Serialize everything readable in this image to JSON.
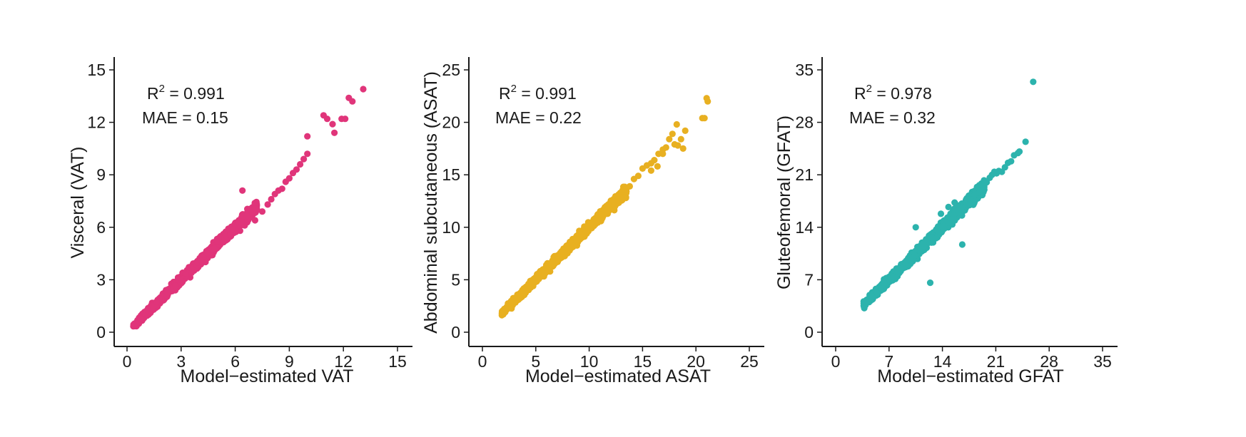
{
  "chart_data": [
    {
      "type": "scatter",
      "title": "",
      "xlabel": "Model−estimated VAT",
      "ylabel": "Visceral (VAT)",
      "xlim": [
        0,
        15
      ],
      "ylim": [
        0,
        15
      ],
      "xticks": [
        0,
        3,
        6,
        9,
        12,
        15
      ],
      "yticks": [
        0,
        3,
        6,
        9,
        12,
        15
      ],
      "color": "#e0357a",
      "annotation": {
        "r2_label": "R",
        "r2_exponent": "2",
        "r2_value": " = 0.991",
        "mae": "MAE = 0.15"
      },
      "fit": {
        "slope": 1.0,
        "intercept": 0.0
      },
      "bulk_range": [
        0.35,
        7.2
      ],
      "bulk_noise": 0.13,
      "n_points": 1400,
      "outliers": [
        [
          7.5,
          6.9
        ],
        [
          7.8,
          7.3
        ],
        [
          8.0,
          7.6
        ],
        [
          8.2,
          7.9
        ],
        [
          8.4,
          8.1
        ],
        [
          8.6,
          8.2
        ],
        [
          8.8,
          8.6
        ],
        [
          9.0,
          8.8
        ],
        [
          9.2,
          9.1
        ],
        [
          9.4,
          9.3
        ],
        [
          9.6,
          9.6
        ],
        [
          9.8,
          9.9
        ],
        [
          10.0,
          10.2
        ],
        [
          6.4,
          8.1
        ],
        [
          7.1,
          6.4
        ],
        [
          10.0,
          11.2
        ],
        [
          10.9,
          12.4
        ],
        [
          11.1,
          12.2
        ],
        [
          11.4,
          11.9
        ],
        [
          11.5,
          11.4
        ],
        [
          11.9,
          12.2
        ],
        [
          12.1,
          12.2
        ],
        [
          12.3,
          13.4
        ],
        [
          12.5,
          13.2
        ],
        [
          13.1,
          13.9
        ]
      ]
    },
    {
      "type": "scatter",
      "title": "",
      "xlabel": "Model−estimated ASAT",
      "ylabel": "Abdominal subcutaneous (ASAT)",
      "xlim": [
        0,
        25
      ],
      "ylim": [
        0,
        25
      ],
      "xticks": [
        0,
        5,
        10,
        15,
        20,
        25
      ],
      "yticks": [
        0,
        5,
        10,
        15,
        20,
        25
      ],
      "color": "#e8b021",
      "annotation": {
        "r2_label": "R",
        "r2_exponent": "2",
        "r2_value": " = 0.991",
        "mae": "MAE = 0.22"
      },
      "fit": {
        "slope": 1.0,
        "intercept": 0.0
      },
      "bulk_range": [
        1.8,
        13.5
      ],
      "bulk_noise": 0.22,
      "n_points": 1300,
      "outliers": [
        [
          13.8,
          13.9
        ],
        [
          14.2,
          14.6
        ],
        [
          14.6,
          14.9
        ],
        [
          15.0,
          15.6
        ],
        [
          15.4,
          15.9
        ],
        [
          15.8,
          16.1
        ],
        [
          16.1,
          16.4
        ],
        [
          16.5,
          17.0
        ],
        [
          16.9,
          17.4
        ],
        [
          17.2,
          17.6
        ],
        [
          17.5,
          18.4
        ],
        [
          17.8,
          18.9
        ],
        [
          18.0,
          17.9
        ],
        [
          18.3,
          17.8
        ],
        [
          18.6,
          18.4
        ],
        [
          18.8,
          17.5
        ],
        [
          19.0,
          19.2
        ],
        [
          18.2,
          19.8
        ],
        [
          16.9,
          17.0
        ],
        [
          15.8,
          15.4
        ],
        [
          16.4,
          15.8
        ],
        [
          20.6,
          20.4
        ],
        [
          20.8,
          20.4
        ],
        [
          21.0,
          22.3
        ],
        [
          21.1,
          22.0
        ]
      ]
    },
    {
      "type": "scatter",
      "title": "",
      "xlabel": "Model−estimated GFAT",
      "ylabel": "Gluteofemoral (GFAT)",
      "xlim": [
        0,
        35
      ],
      "ylim": [
        0,
        35
      ],
      "xticks": [
        0,
        7,
        14,
        21,
        28,
        35
      ],
      "yticks": [
        0,
        7,
        14,
        21,
        28,
        35
      ],
      "color": "#2cb3ad",
      "annotation": {
        "r2_label": "R",
        "r2_exponent": "2",
        "r2_value": " = 0.978",
        "mae": "MAE = 0.32"
      },
      "fit": {
        "slope": 1.0,
        "intercept": 0.0
      },
      "bulk_range": [
        3.6,
        19.5
      ],
      "bulk_noise": 0.35,
      "n_points": 1300,
      "outliers": [
        [
          19.8,
          20.0
        ],
        [
          20.2,
          20.6
        ],
        [
          20.5,
          21.0
        ],
        [
          20.8,
          21.4
        ],
        [
          21.1,
          21.2
        ],
        [
          21.4,
          21.5
        ],
        [
          21.8,
          21.4
        ],
        [
          22.2,
          22.0
        ],
        [
          22.6,
          22.6
        ],
        [
          23.0,
          22.8
        ],
        [
          23.4,
          23.6
        ],
        [
          23.9,
          23.9
        ],
        [
          24.1,
          24.1
        ],
        [
          24.9,
          25.4
        ],
        [
          25.9,
          33.4
        ],
        [
          12.4,
          6.6
        ],
        [
          16.6,
          11.7
        ],
        [
          13.8,
          15.8
        ],
        [
          14.8,
          16.7
        ],
        [
          15.6,
          17.3
        ],
        [
          10.5,
          14.0
        ]
      ]
    }
  ]
}
